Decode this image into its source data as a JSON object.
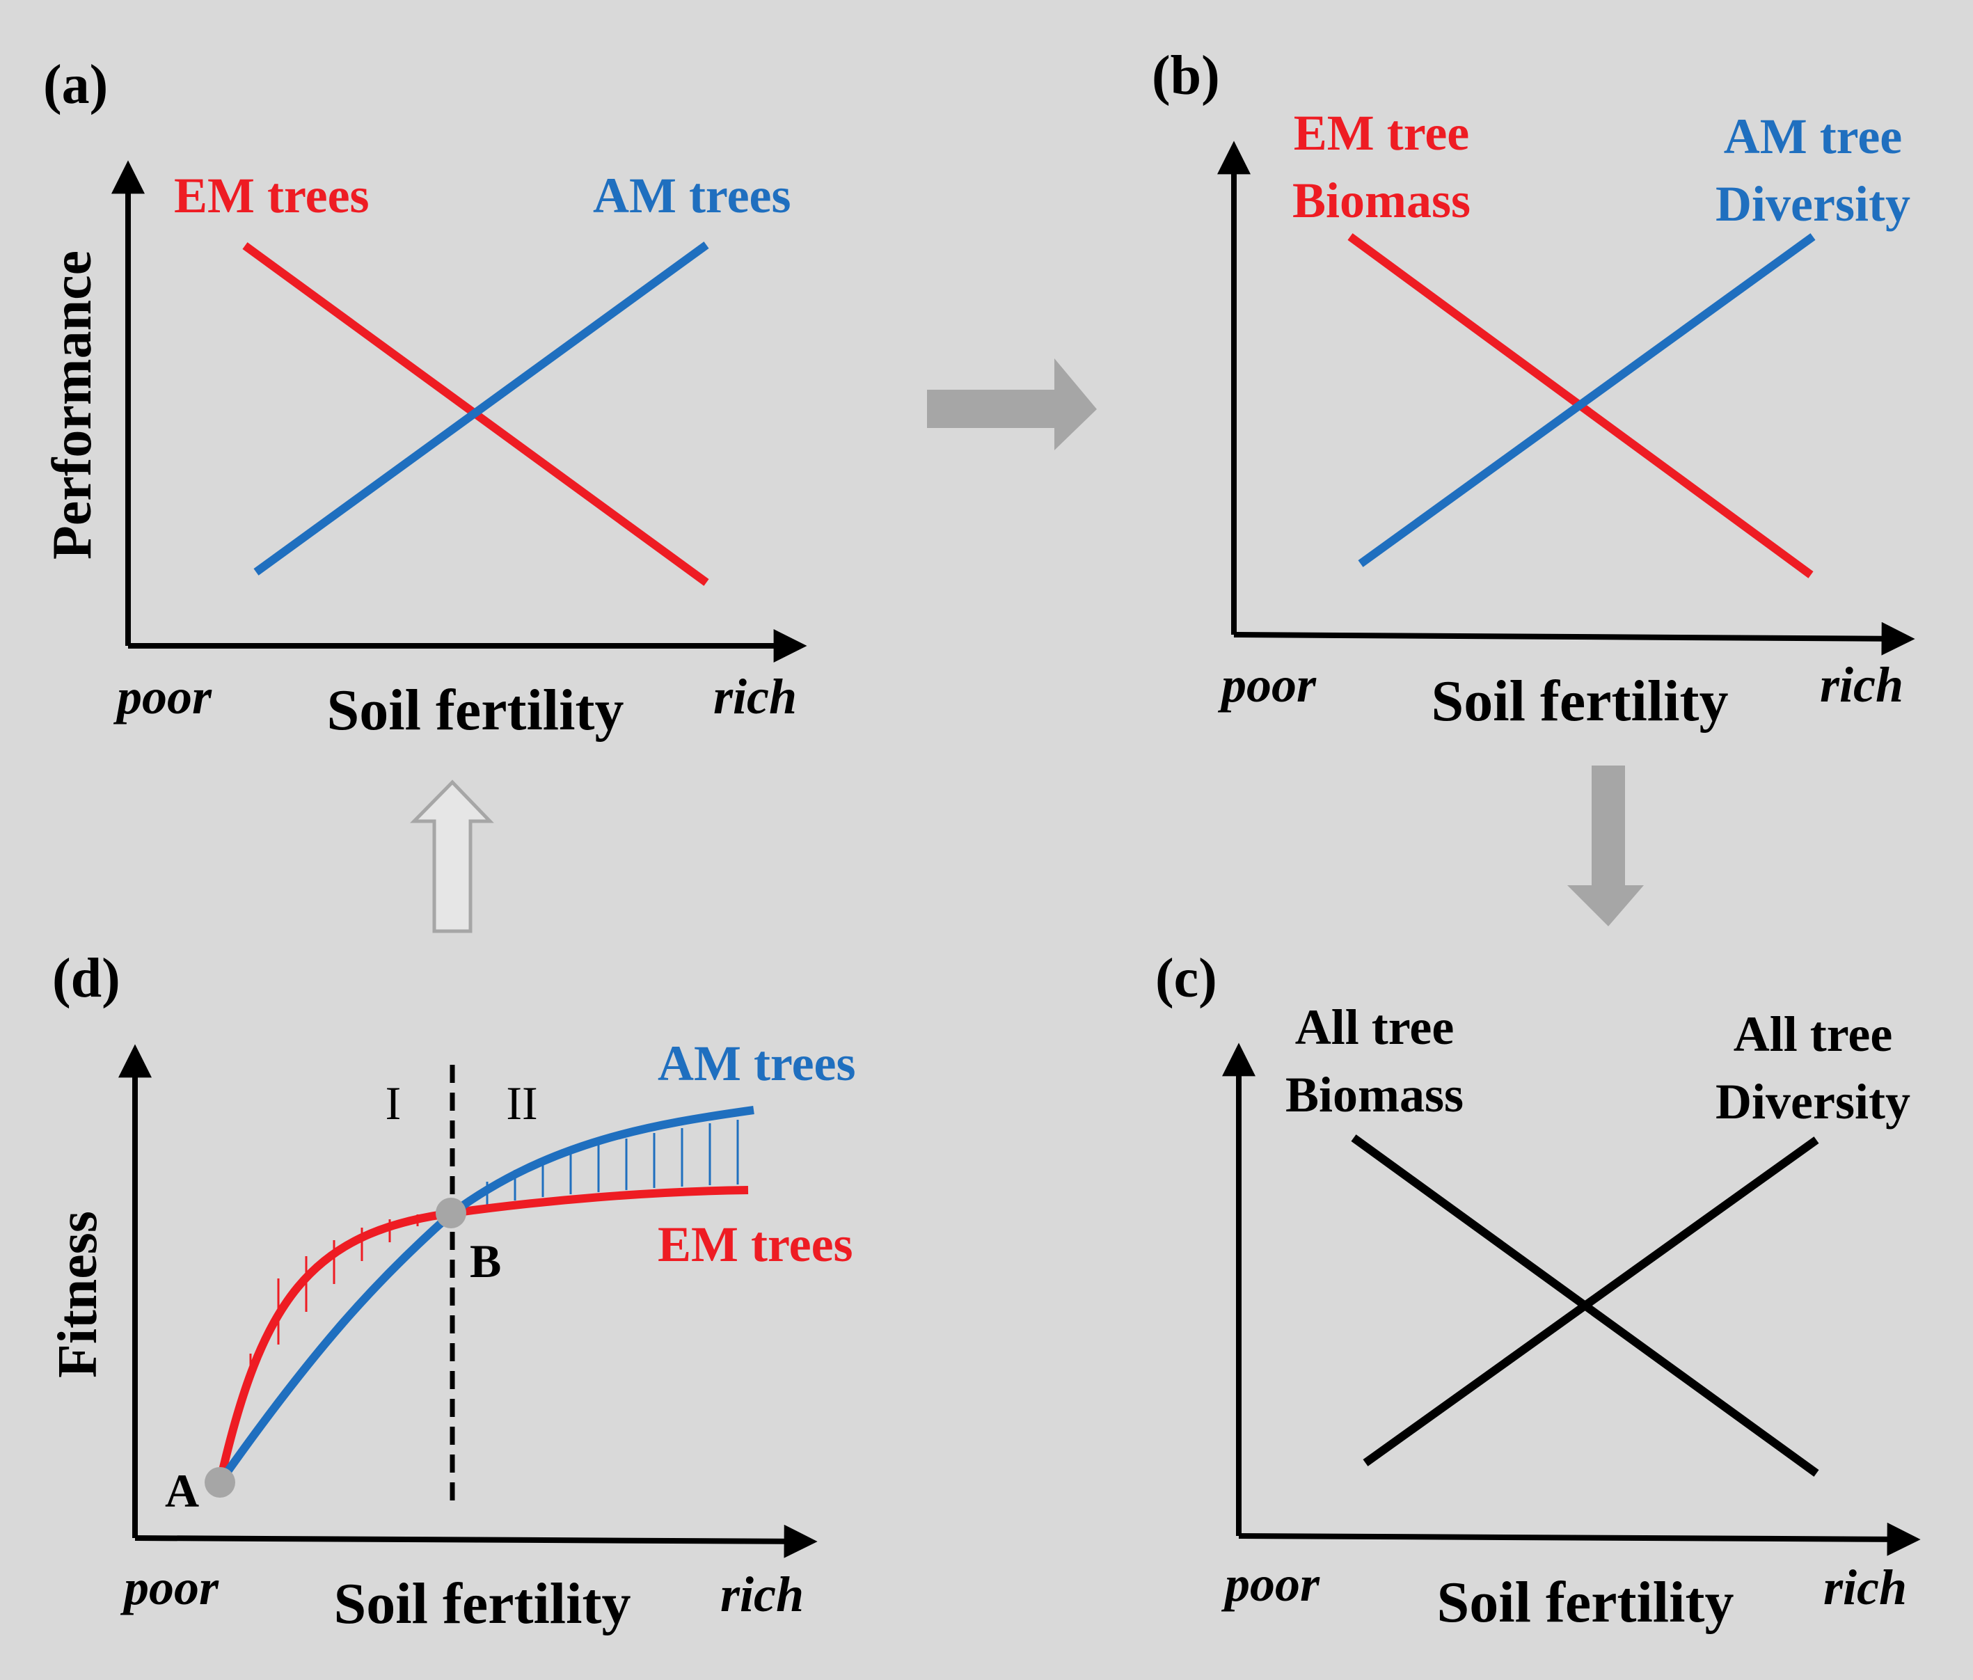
{
  "colors": {
    "background": "#d9d9d9",
    "em_red": "#ee1c23",
    "am_blue": "#1f6fbf",
    "axis_black": "#000000",
    "arrow_gray": "#a6a6a6",
    "marker_gray": "#a6a6a6"
  },
  "panels": {
    "a": {
      "tag": "(a)",
      "ylabel": "Performance",
      "xlabel": "Soil fertility",
      "x_low": "poor",
      "x_high": "rich",
      "em_label": "EM trees",
      "am_label": "AM trees"
    },
    "b": {
      "tag": "(b)",
      "xlabel": "Soil fertility",
      "x_low": "poor",
      "x_high": "rich",
      "em_label_line1": "EM tree",
      "em_label_line2": "Biomass",
      "am_label_line1": "AM tree",
      "am_label_line2": "Diversity"
    },
    "c": {
      "tag": "(c)",
      "xlabel": "Soil fertility",
      "x_low": "poor",
      "x_high": "rich",
      "left_label_line1": "All tree",
      "left_label_line2": "Biomass",
      "right_label_line1": "All tree",
      "right_label_line2": "Diversity"
    },
    "d": {
      "tag": "(d)",
      "ylabel": "Fitness",
      "xlabel": "Soil fertility",
      "x_low": "poor",
      "x_high": "rich",
      "am_label": "AM trees",
      "em_label": "EM trees",
      "region_1": "I",
      "region_2": "II",
      "point_a": "A",
      "point_b": "B"
    }
  },
  "arrows": [
    "right-arrow",
    "down-arrow",
    "up-arrow-outline"
  ]
}
